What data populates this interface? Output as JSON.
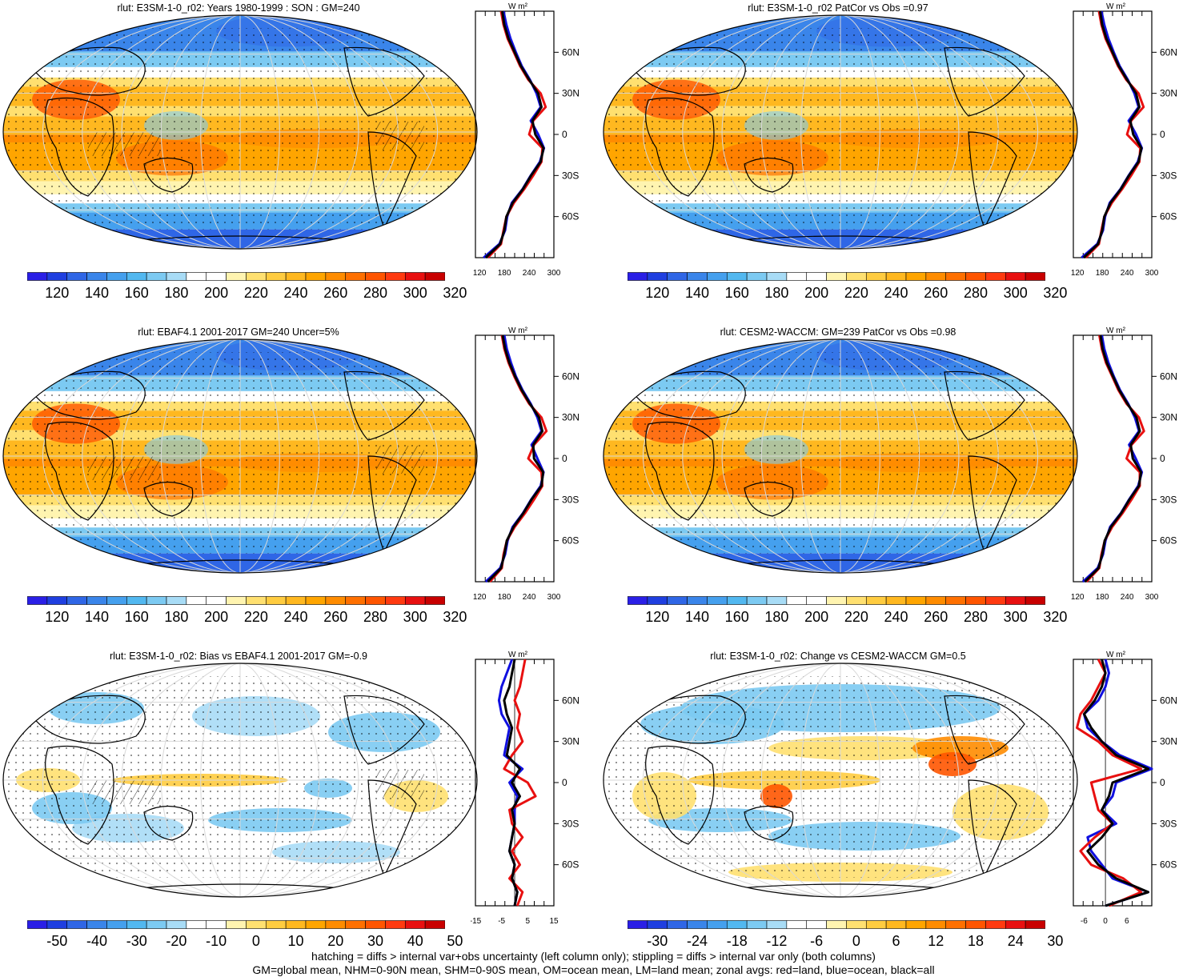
{
  "panels": [
    {
      "id": "p1",
      "title": "rlut: E3SM-1-0_r02: Years 1980-1999 : SON : GM=240",
      "kind": "abs",
      "colorbar": {
        "labels": [
          "120",
          "140",
          "160",
          "180",
          "200",
          "220",
          "240",
          "260",
          "280",
          "300",
          "320"
        ],
        "colors": [
          "#2a1fe6",
          "#1f3fe0",
          "#2f66e6",
          "#3a85ea",
          "#45a0ee",
          "#52b8f0",
          "#7ccaf2",
          "#a8dcf6",
          "#ffffff",
          "#ffffff",
          "#fff4b0",
          "#ffe070",
          "#ffcc40",
          "#ffb820",
          "#ffa500",
          "#ff8c00",
          "#ff7000",
          "#ff5500",
          "#ff3a10",
          "#e81010",
          "#c80000"
        ]
      },
      "zonal": {
        "xticks": [
          "120",
          "180",
          "240",
          "300"
        ],
        "xmin": 110,
        "xmax": 300,
        "unit": "W m²",
        "lat": [
          -90,
          -80,
          -70,
          -60,
          -50,
          -40,
          -30,
          -20,
          -10,
          0,
          10,
          20,
          30,
          40,
          50,
          60,
          70,
          80,
          90
        ],
        "all": [
          135,
          170,
          180,
          185,
          200,
          225,
          245,
          268,
          275,
          255,
          248,
          270,
          262,
          240,
          220,
          205,
          190,
          180,
          175
        ],
        "land": [
          140,
          172,
          178,
          185,
          203,
          228,
          250,
          270,
          272,
          240,
          250,
          280,
          268,
          238,
          218,
          203,
          188,
          178,
          172
        ],
        "ocean": [
          130,
          168,
          182,
          187,
          198,
          224,
          244,
          266,
          276,
          262,
          244,
          268,
          258,
          242,
          222,
          208,
          195,
          185,
          178
        ]
      }
    },
    {
      "id": "p2",
      "title": "rlut: E3SM-1-0_r02 PatCor vs Obs =0.97",
      "kind": "abs",
      "colorbar": {
        "labels": [
          "120",
          "140",
          "160",
          "180",
          "200",
          "220",
          "240",
          "260",
          "280",
          "300",
          "320"
        ],
        "colors": [
          "#2a1fe6",
          "#1f3fe0",
          "#2f66e6",
          "#3a85ea",
          "#45a0ee",
          "#52b8f0",
          "#7ccaf2",
          "#a8dcf6",
          "#ffffff",
          "#ffffff",
          "#fff4b0",
          "#ffe070",
          "#ffcc40",
          "#ffb820",
          "#ffa500",
          "#ff8c00",
          "#ff7000",
          "#ff5500",
          "#ff3a10",
          "#e81010",
          "#c80000"
        ]
      },
      "zonal": {
        "xticks": [
          "120",
          "180",
          "240",
          "300"
        ],
        "xmin": 110,
        "xmax": 300,
        "unit": "W m²",
        "lat": [
          -90,
          -80,
          -70,
          -60,
          -50,
          -40,
          -30,
          -20,
          -10,
          0,
          10,
          20,
          30,
          40,
          50,
          60,
          70,
          80,
          90
        ],
        "all": [
          135,
          170,
          180,
          185,
          200,
          225,
          245,
          268,
          275,
          255,
          248,
          270,
          262,
          240,
          220,
          205,
          190,
          180,
          175
        ],
        "land": [
          140,
          172,
          178,
          185,
          203,
          228,
          250,
          270,
          272,
          240,
          250,
          280,
          268,
          238,
          218,
          203,
          188,
          178,
          172
        ],
        "ocean": [
          130,
          168,
          182,
          187,
          198,
          224,
          244,
          266,
          276,
          262,
          244,
          268,
          258,
          242,
          222,
          208,
          195,
          185,
          178
        ]
      }
    },
    {
      "id": "p3",
      "title": "rlut: EBAF4.1 2001-2017 GM=240 Uncer=5%",
      "kind": "abs",
      "colorbar": {
        "labels": [
          "120",
          "140",
          "160",
          "180",
          "200",
          "220",
          "240",
          "260",
          "280",
          "300",
          "320"
        ],
        "colors": [
          "#2a1fe6",
          "#1f3fe0",
          "#2f66e6",
          "#3a85ea",
          "#45a0ee",
          "#52b8f0",
          "#7ccaf2",
          "#a8dcf6",
          "#ffffff",
          "#ffffff",
          "#fff4b0",
          "#ffe070",
          "#ffcc40",
          "#ffb820",
          "#ffa500",
          "#ff8c00",
          "#ff7000",
          "#ff5500",
          "#ff3a10",
          "#e81010",
          "#c80000"
        ]
      },
      "zonal": {
        "xticks": [
          "120",
          "180",
          "240",
          "300"
        ],
        "xmin": 110,
        "xmax": 300,
        "unit": "W m²",
        "lat": [
          -90,
          -80,
          -70,
          -60,
          -50,
          -40,
          -30,
          -20,
          -10,
          0,
          10,
          20,
          30,
          40,
          50,
          60,
          70,
          80,
          90
        ],
        "all": [
          140,
          172,
          180,
          186,
          202,
          226,
          246,
          270,
          274,
          252,
          250,
          272,
          264,
          242,
          222,
          206,
          192,
          182,
          176
        ],
        "land": [
          145,
          174,
          178,
          186,
          205,
          230,
          252,
          272,
          270,
          238,
          252,
          282,
          270,
          240,
          220,
          204,
          190,
          180,
          174
        ],
        "ocean": [
          135,
          170,
          182,
          188,
          200,
          225,
          245,
          268,
          275,
          260,
          246,
          270,
          260,
          244,
          224,
          208,
          196,
          186,
          180
        ]
      }
    },
    {
      "id": "p4",
      "title": "rlut: CESM2-WACCM: GM=239 PatCor vs Obs =0.98",
      "kind": "abs",
      "colorbar": {
        "labels": [
          "120",
          "140",
          "160",
          "180",
          "200",
          "220",
          "240",
          "260",
          "280",
          "300",
          "320"
        ],
        "colors": [
          "#2a1fe6",
          "#1f3fe0",
          "#2f66e6",
          "#3a85ea",
          "#45a0ee",
          "#52b8f0",
          "#7ccaf2",
          "#a8dcf6",
          "#ffffff",
          "#ffffff",
          "#fff4b0",
          "#ffe070",
          "#ffcc40",
          "#ffb820",
          "#ffa500",
          "#ff8c00",
          "#ff7000",
          "#ff5500",
          "#ff3a10",
          "#e81010",
          "#c80000"
        ]
      },
      "zonal": {
        "xticks": [
          "120",
          "180",
          "240",
          "300"
        ],
        "xmin": 110,
        "xmax": 300,
        "unit": "W m²",
        "lat": [
          -90,
          -80,
          -70,
          -60,
          -50,
          -40,
          -30,
          -20,
          -10,
          0,
          10,
          20,
          30,
          40,
          50,
          60,
          70,
          80,
          90
        ],
        "all": [
          138,
          171,
          180,
          186,
          201,
          226,
          246,
          269,
          274,
          254,
          249,
          271,
          263,
          241,
          221,
          206,
          191,
          181,
          176
        ],
        "land": [
          142,
          173,
          178,
          186,
          204,
          229,
          251,
          271,
          271,
          239,
          251,
          281,
          269,
          239,
          219,
          204,
          189,
          179,
          173
        ],
        "ocean": [
          133,
          169,
          182,
          188,
          199,
          225,
          245,
          267,
          276,
          261,
          245,
          269,
          259,
          243,
          223,
          208,
          195,
          185,
          179
        ]
      }
    },
    {
      "id": "p5",
      "title": "rlut: E3SM-1-0_r02: Bias vs EBAF4.1 2001-2017  GM=-0.9",
      "kind": "bias",
      "colorbar": {
        "labels": [
          "-50",
          "-40",
          "-30",
          "-20",
          "-10",
          "0",
          "10",
          "20",
          "30",
          "40",
          "50"
        ],
        "colors": [
          "#2a1fe6",
          "#1f3fe0",
          "#2f66e6",
          "#3a85ea",
          "#45a0ee",
          "#52b8f0",
          "#7ccaf2",
          "#a8dcf6",
          "#ffffff",
          "#ffffff",
          "#fff4b0",
          "#ffe070",
          "#ffcc40",
          "#ffb820",
          "#ffa500",
          "#ff8c00",
          "#ff7000",
          "#ff5500",
          "#ff3a10",
          "#e81010",
          "#c80000"
        ]
      },
      "zonal": {
        "xticks": [
          "-15",
          "-5",
          "5",
          "15"
        ],
        "xmin": -15,
        "xmax": 15,
        "unit": "W m²",
        "lat": [
          -90,
          -80,
          -70,
          -60,
          -50,
          -40,
          -30,
          -20,
          -10,
          0,
          10,
          20,
          30,
          40,
          50,
          60,
          70,
          80,
          90
        ],
        "all": [
          0,
          1,
          -1,
          0,
          -2,
          -1,
          0,
          -1,
          2,
          -1,
          2,
          -3,
          -2,
          -1,
          -3,
          -4,
          -2,
          -1,
          0
        ],
        "land": [
          1,
          3,
          -2,
          2,
          -1,
          3,
          -1,
          -2,
          8,
          5,
          -4,
          -1,
          3,
          1,
          2,
          0,
          2,
          3,
          4
        ],
        "ocean": [
          0,
          1,
          -1,
          0,
          -2,
          -1,
          0,
          0,
          1,
          -2,
          3,
          -4,
          -3,
          -2,
          -5,
          -6,
          -5,
          -3,
          -1
        ]
      }
    },
    {
      "id": "p6",
      "title": "rlut: E3SM-1-0_r02: Change vs CESM2-WACCM GM=0.5",
      "kind": "change",
      "colorbar": {
        "labels": [
          "-30",
          "-24",
          "-18",
          "-12",
          "-6",
          "0",
          "6",
          "12",
          "18",
          "24",
          "30"
        ],
        "colors": [
          "#2a1fe6",
          "#1f3fe0",
          "#2f66e6",
          "#3a85ea",
          "#45a0ee",
          "#52b8f0",
          "#7ccaf2",
          "#a8dcf6",
          "#ffffff",
          "#ffffff",
          "#fff4b0",
          "#ffe070",
          "#ffcc40",
          "#ffb820",
          "#ffa500",
          "#ff8c00",
          "#ff7000",
          "#ff5500",
          "#ff3a10",
          "#e81010",
          "#c80000"
        ]
      },
      "zonal": {
        "xticks": [
          "-6",
          "0",
          "6"
        ],
        "xmin": -9,
        "xmax": 13,
        "unit": "W m²",
        "lat": [
          -90,
          -80,
          -70,
          -60,
          -50,
          -40,
          -30,
          -20,
          -10,
          0,
          10,
          20,
          30,
          40,
          50,
          60,
          70,
          80,
          90
        ],
        "all": [
          0,
          12,
          3,
          -2,
          -5,
          -1,
          2,
          -1,
          1,
          2,
          12,
          3,
          -1,
          -4,
          -6,
          -3,
          -1,
          0,
          -1
        ],
        "land": [
          1,
          10,
          5,
          -4,
          -7,
          -3,
          2,
          -2,
          -3,
          -4,
          10,
          2,
          -2,
          -8,
          -7,
          -4,
          -2,
          0,
          -2
        ],
        "ocean": [
          0,
          12,
          2,
          -1,
          -4,
          -5,
          3,
          -1,
          2,
          3,
          13,
          4,
          -1,
          -5,
          -6,
          -2,
          0,
          1,
          0
        ]
      }
    }
  ],
  "footer": {
    "line1": "hatching = diffs > internal var+obs uncertainty (left column only); stippling = diffs > internal var only (both columns)",
    "line2": "GM=global mean, NHM=0-90N mean, SHM=0-90S mean, OM=ocean mean, LM=land mean; zonal avgs: red=land, blue=ocean, black=all"
  },
  "lat_labels": [
    "60N",
    "30N",
    "0",
    "30S",
    "60S"
  ]
}
